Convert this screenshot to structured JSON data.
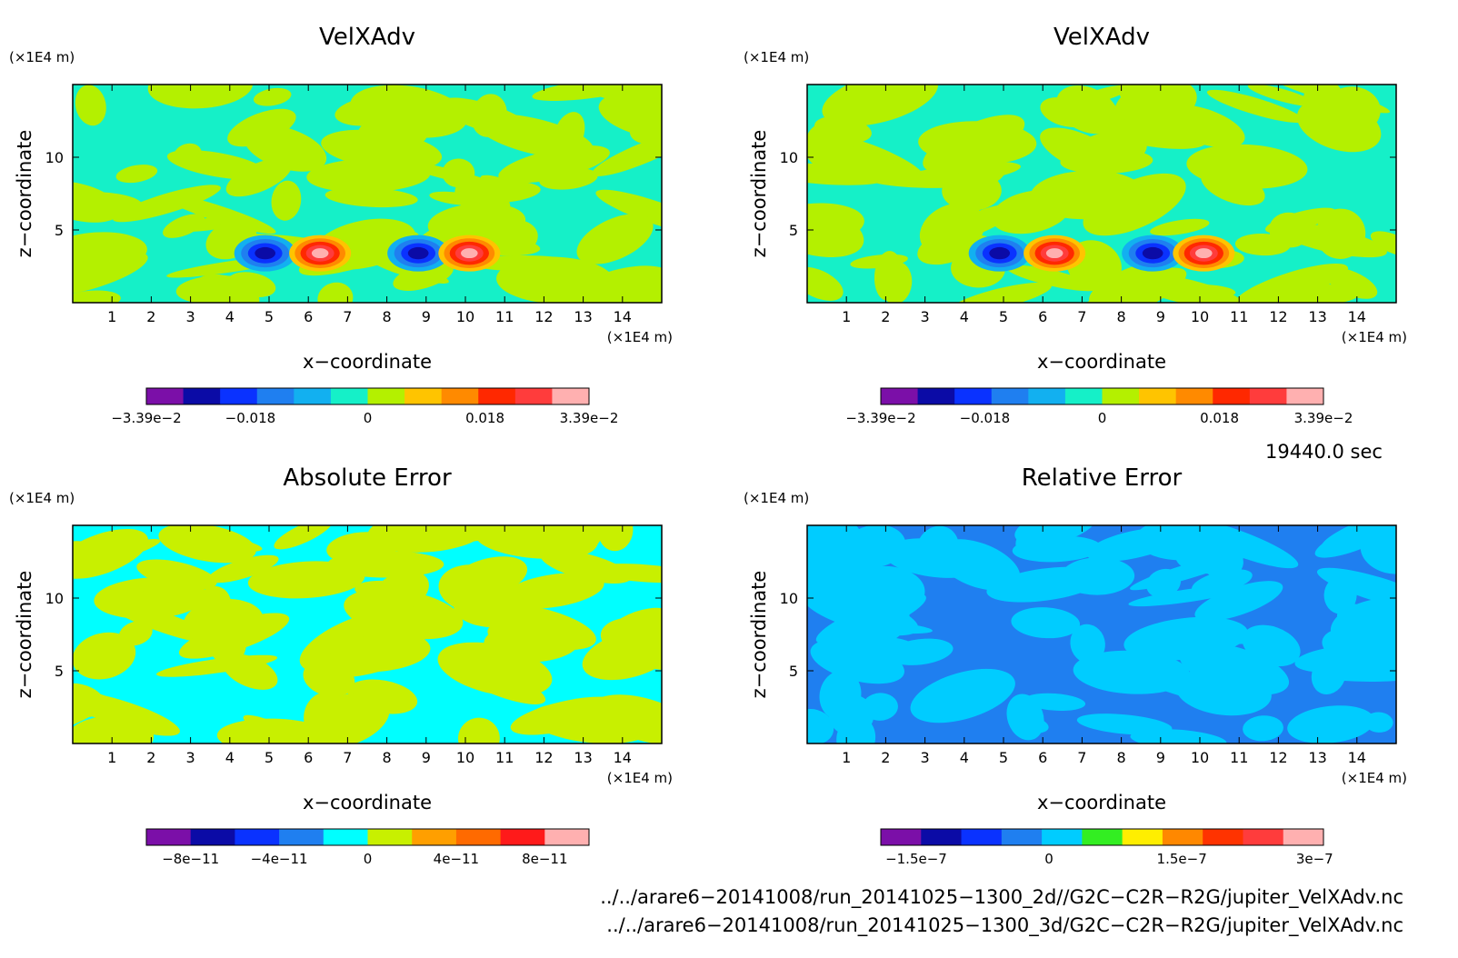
{
  "chart_data": [
    {
      "type": "heatmap",
      "title": "VelXAdv",
      "xlabel": "x−coordinate",
      "ylabel": "z−coordinate",
      "x_unit": "(×1E4 m)",
      "y_unit": "(×1E4 m)",
      "xlim": [
        0,
        15
      ],
      "ylim": [
        0,
        15
      ],
      "x_ticks": [
        "1",
        "2",
        "3",
        "4",
        "5",
        "6",
        "7",
        "8",
        "9",
        "10",
        "11",
        "12",
        "13",
        "14"
      ],
      "y_ticks": [
        "5",
        "10"
      ],
      "colorbar": {
        "colors": [
          "#7b0fa8",
          "#0b0ba6",
          "#0a32ff",
          "#1f7ff0",
          "#12b0f0",
          "#15f0c8",
          "#b4f000",
          "#ffc400",
          "#ff8a00",
          "#ff2800",
          "#ff3c3c",
          "#ffb0b0"
        ],
        "tick_labels": [
          "−3.39e−2",
          "−0.018",
          "0",
          "0.018",
          "3.39e−2"
        ]
      },
      "background_value_colors": [
        "#15f0c8",
        "#b4f000"
      ],
      "features": [
        {
          "type": "negative-extremum",
          "x": 4.9,
          "z": 3.4
        },
        {
          "type": "positive-extremum",
          "x": 6.3,
          "z": 3.4
        },
        {
          "type": "negative-extremum",
          "x": 8.8,
          "z": 3.4
        },
        {
          "type": "positive-extremum",
          "x": 10.1,
          "z": 3.4
        }
      ]
    },
    {
      "type": "heatmap",
      "title": "VelXAdv",
      "xlabel": "x−coordinate",
      "ylabel": "z−coordinate",
      "x_unit": "(×1E4 m)",
      "y_unit": "(×1E4 m)",
      "xlim": [
        0,
        15
      ],
      "ylim": [
        0,
        15
      ],
      "x_ticks": [
        "1",
        "2",
        "3",
        "4",
        "5",
        "6",
        "7",
        "8",
        "9",
        "10",
        "11",
        "12",
        "13",
        "14"
      ],
      "y_ticks": [
        "5",
        "10"
      ],
      "colorbar": {
        "colors": [
          "#7b0fa8",
          "#0b0ba6",
          "#0a32ff",
          "#1f7ff0",
          "#12b0f0",
          "#15f0c8",
          "#b4f000",
          "#ffc400",
          "#ff8a00",
          "#ff2800",
          "#ff3c3c",
          "#ffb0b0"
        ],
        "tick_labels": [
          "−3.39e−2",
          "−0.018",
          "0",
          "0.018",
          "3.39e−2"
        ]
      },
      "background_value_colors": [
        "#15f0c8",
        "#b4f000"
      ],
      "features": [
        {
          "type": "negative-extremum",
          "x": 4.9,
          "z": 3.4
        },
        {
          "type": "positive-extremum",
          "x": 6.3,
          "z": 3.4
        },
        {
          "type": "negative-extremum",
          "x": 8.8,
          "z": 3.4
        },
        {
          "type": "positive-extremum",
          "x": 10.1,
          "z": 3.4
        }
      ]
    },
    {
      "type": "heatmap",
      "title": "Absolute Error",
      "xlabel": "x−coordinate",
      "ylabel": "z−coordinate",
      "x_unit": "(×1E4 m)",
      "y_unit": "(×1E4 m)",
      "xlim": [
        0,
        15
      ],
      "ylim": [
        0,
        15
      ],
      "x_ticks": [
        "1",
        "2",
        "3",
        "4",
        "5",
        "6",
        "7",
        "8",
        "9",
        "10",
        "11",
        "12",
        "13",
        "14"
      ],
      "y_ticks": [
        "5",
        "10"
      ],
      "colorbar": {
        "colors": [
          "#7b0fa8",
          "#0b0ba6",
          "#0a32ff",
          "#1f7ff0",
          "#00ffff",
          "#c8f000",
          "#ff9f00",
          "#ff6a00",
          "#ff1a1a",
          "#ffb0b0"
        ],
        "tick_labels": [
          "−8e−11",
          "−4e−11",
          "0",
          "4e−11",
          "8e−11"
        ]
      },
      "background_value_colors": [
        "#00ffff",
        "#c8f000"
      ]
    },
    {
      "type": "heatmap",
      "title": "Relative Error",
      "xlabel": "x−coordinate",
      "ylabel": "z−coordinate",
      "x_unit": "(×1E4 m)",
      "y_unit": "(×1E4 m)",
      "xlim": [
        0,
        15
      ],
      "ylim": [
        0,
        15
      ],
      "x_ticks": [
        "1",
        "2",
        "3",
        "4",
        "5",
        "6",
        "7",
        "8",
        "9",
        "10",
        "11",
        "12",
        "13",
        "14"
      ],
      "y_ticks": [
        "5",
        "10"
      ],
      "colorbar": {
        "colors": [
          "#7b0fa8",
          "#0b0ba6",
          "#0a32ff",
          "#1f7ff0",
          "#00ccff",
          "#33ee22",
          "#ffee00",
          "#ff8800",
          "#ff3300",
          "#ff3c3c",
          "#ffb0b0"
        ],
        "tick_labels": [
          "−1.5e−7",
          "0",
          "1.5e−7",
          "3e−7"
        ]
      },
      "background_value_colors": [
        "#1f7ff0",
        "#00ccff"
      ]
    }
  ],
  "time_label": "19440.0 sec",
  "source_files": [
    "../../arare6−20141008/run_20141025−1300_2d//G2C−C2R−R2G/jupiter_VelXAdv.nc",
    "../../arare6−20141008/run_20141025−1300_3d/G2C−C2R−R2G/jupiter_VelXAdv.nc"
  ]
}
